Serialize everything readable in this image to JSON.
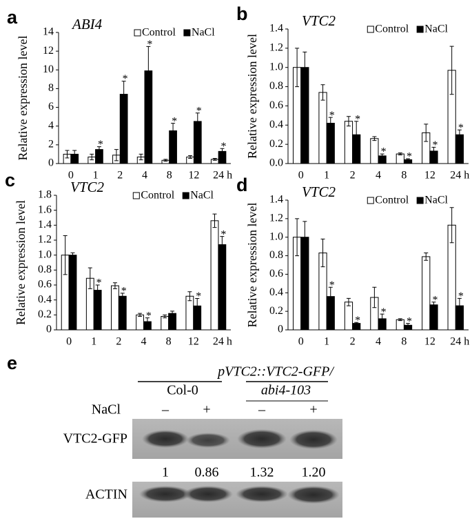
{
  "chart_data": [
    {
      "type": "bar",
      "panel_label": "a",
      "title": "ABI4",
      "ylabel": "Relative expression level",
      "categories": [
        "0",
        "1",
        "2",
        "4",
        "8",
        "12",
        "24 h"
      ],
      "ylim": [
        0,
        14
      ],
      "yticks": [
        0,
        2,
        4,
        6,
        8,
        10,
        12,
        14
      ],
      "legend": "top",
      "series": [
        {
          "name": "Control",
          "color": "#ffffff",
          "values": [
            1.0,
            0.7,
            0.9,
            0.7,
            0.35,
            0.7,
            0.45
          ],
          "errors": [
            0.4,
            0.3,
            0.6,
            0.3,
            0.1,
            0.15,
            0.1
          ],
          "annotations": [
            null,
            null,
            null,
            null,
            null,
            null,
            null
          ]
        },
        {
          "name": "NaCl",
          "color": "#000000",
          "values": [
            1.0,
            1.5,
            7.4,
            9.9,
            3.5,
            4.5,
            1.3
          ],
          "errors": [
            0.4,
            0.3,
            1.4,
            2.6,
            0.8,
            0.9,
            0.3
          ],
          "annotations": [
            null,
            "*",
            "*",
            "*",
            "*",
            "*",
            "*"
          ]
        }
      ]
    },
    {
      "type": "bar",
      "panel_label": "b",
      "title": "VTC2",
      "ylabel": "Relative expression level",
      "categories": [
        "0",
        "1",
        "2",
        "4",
        "8",
        "12",
        "24 h"
      ],
      "ylim": [
        0,
        1.4
      ],
      "yticks": [
        {
          "value": 0,
          "label": "0.0"
        },
        0.2,
        0.4,
        0.6,
        0.8,
        {
          "value": 1,
          "label": "1.0"
        },
        1.2,
        1.4
      ],
      "legend": "top",
      "series": [
        {
          "name": "Control",
          "color": "#ffffff",
          "values": [
            1.0,
            0.74,
            0.44,
            0.26,
            0.1,
            0.32,
            0.97
          ],
          "errors": [
            0.2,
            0.08,
            0.05,
            0.02,
            0.01,
            0.09,
            0.25
          ],
          "annotations": [
            null,
            null,
            null,
            null,
            null,
            null,
            null
          ]
        },
        {
          "name": "NaCl",
          "color": "#000000",
          "values": [
            1.0,
            0.42,
            0.3,
            0.08,
            0.04,
            0.13,
            0.3
          ],
          "errors": [
            0.16,
            0.06,
            0.14,
            0.02,
            0.01,
            0.04,
            0.05
          ],
          "annotations": [
            null,
            "*",
            "*",
            "*",
            "*",
            "*",
            "*"
          ]
        }
      ]
    },
    {
      "type": "bar",
      "panel_label": "c",
      "title": "VTC2",
      "ylabel": "Relative expression level",
      "categories": [
        "0",
        "1",
        "2",
        "4",
        "8",
        "12",
        "24 h"
      ],
      "ylim": [
        0,
        1.8
      ],
      "yticks": [
        0,
        0.2,
        0.4,
        0.6,
        0.8,
        {
          "value": 1,
          "label": "1.0"
        },
        1.2,
        1.4,
        1.6,
        1.8
      ],
      "legend": "top",
      "series": [
        {
          "name": "Control",
          "color": "#ffffff",
          "values": [
            1.0,
            0.69,
            0.59,
            0.2,
            0.18,
            0.45,
            1.46
          ],
          "errors": [
            0.26,
            0.14,
            0.04,
            0.02,
            0.02,
            0.06,
            0.09
          ],
          "annotations": [
            null,
            null,
            null,
            null,
            null,
            null,
            null
          ]
        },
        {
          "name": "NaCl",
          "color": "#000000",
          "values": [
            1.0,
            0.53,
            0.45,
            0.11,
            0.22,
            0.32,
            1.14
          ],
          "errors": [
            0.03,
            0.07,
            0.04,
            0.05,
            0.03,
            0.1,
            0.11
          ],
          "annotations": [
            null,
            "*",
            "*",
            "*",
            null,
            "*",
            "*"
          ]
        }
      ]
    },
    {
      "type": "bar",
      "panel_label": "d",
      "title": "VTC2",
      "ylabel": "Relative expression level",
      "categories": [
        "0",
        "1",
        "2",
        "4",
        "8",
        "12",
        "24 h"
      ],
      "ylim": [
        0,
        1.4
      ],
      "yticks": [
        0,
        0.2,
        0.4,
        0.6,
        0.8,
        {
          "value": 1,
          "label": "1.0"
        },
        1.2,
        1.4
      ],
      "legend": "top",
      "series": [
        {
          "name": "Control",
          "color": "#ffffff",
          "values": [
            1.0,
            0.83,
            0.3,
            0.35,
            0.11,
            0.79,
            1.13
          ],
          "errors": [
            0.2,
            0.15,
            0.04,
            0.11,
            0.01,
            0.04,
            0.19
          ],
          "annotations": [
            null,
            null,
            null,
            null,
            null,
            null,
            null
          ]
        },
        {
          "name": "NaCl",
          "color": "#000000",
          "values": [
            1.0,
            0.36,
            0.07,
            0.12,
            0.05,
            0.27,
            0.26
          ],
          "errors": [
            0.17,
            0.1,
            0.01,
            0.05,
            0.02,
            0.03,
            0.08
          ],
          "annotations": [
            null,
            "*",
            "*",
            "*",
            "*",
            "*",
            "*"
          ]
        }
      ]
    }
  ],
  "blot": {
    "panel_label": "e",
    "construct": "pVTC2::VTC2-GFP/",
    "groups": [
      "Col-0",
      "abi4-103"
    ],
    "treatment_label": "NaCl",
    "treatments": [
      "–",
      "+",
      "–",
      "+"
    ],
    "rows": [
      "VTC2-GFP",
      "ACTIN"
    ],
    "ratios": [
      "1",
      "0.86",
      "1.32",
      "1.20"
    ]
  }
}
